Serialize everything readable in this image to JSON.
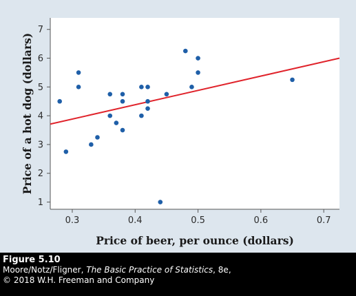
{
  "chart_data": {
    "type": "scatter",
    "xlabel": "Price of beer, per ounce (dollars)",
    "ylabel": "Price of a hot dog (dollars)",
    "xlim": [
      0.265,
      0.725
    ],
    "ylim": [
      0.75,
      7.4
    ],
    "xticks": [
      0.3,
      0.4,
      0.5,
      0.6,
      0.7
    ],
    "xtick_labels": [
      "0.3",
      "0.4",
      "0.5",
      "0.6",
      "0.7"
    ],
    "yticks": [
      1,
      2,
      3,
      4,
      5,
      6,
      7
    ],
    "ytick_labels": [
      "1",
      "2",
      "3",
      "4",
      "5",
      "6",
      "7"
    ],
    "grid": false,
    "legend": "none",
    "point_color": "#1f5fa8",
    "line_color": "#e0232b",
    "points": [
      {
        "x": 0.28,
        "y": 4.5
      },
      {
        "x": 0.29,
        "y": 2.75
      },
      {
        "x": 0.31,
        "y": 5.5
      },
      {
        "x": 0.31,
        "y": 5.0
      },
      {
        "x": 0.33,
        "y": 3.0
      },
      {
        "x": 0.34,
        "y": 3.25
      },
      {
        "x": 0.36,
        "y": 4.75
      },
      {
        "x": 0.36,
        "y": 4.0
      },
      {
        "x": 0.37,
        "y": 3.75
      },
      {
        "x": 0.38,
        "y": 4.75
      },
      {
        "x": 0.38,
        "y": 4.5
      },
      {
        "x": 0.38,
        "y": 3.5
      },
      {
        "x": 0.41,
        "y": 5.0
      },
      {
        "x": 0.41,
        "y": 4.0
      },
      {
        "x": 0.42,
        "y": 5.0
      },
      {
        "x": 0.42,
        "y": 4.5
      },
      {
        "x": 0.42,
        "y": 4.25
      },
      {
        "x": 0.44,
        "y": 1.0
      },
      {
        "x": 0.45,
        "y": 4.75
      },
      {
        "x": 0.48,
        "y": 6.25
      },
      {
        "x": 0.49,
        "y": 5.0
      },
      {
        "x": 0.5,
        "y": 6.0
      },
      {
        "x": 0.5,
        "y": 5.5
      },
      {
        "x": 0.65,
        "y": 5.25
      }
    ],
    "regression_line": {
      "x": [
        0.265,
        0.725
      ],
      "y": [
        3.71,
        6.0
      ]
    }
  },
  "caption": {
    "figure_label": "Figure 5.10",
    "authors": "Moore/Notz/Fligner, ",
    "book_title": "The Basic Practice of Statistics",
    "edition": ", 8e,",
    "copyright": "© 2018 W.H. Freeman and Company"
  }
}
